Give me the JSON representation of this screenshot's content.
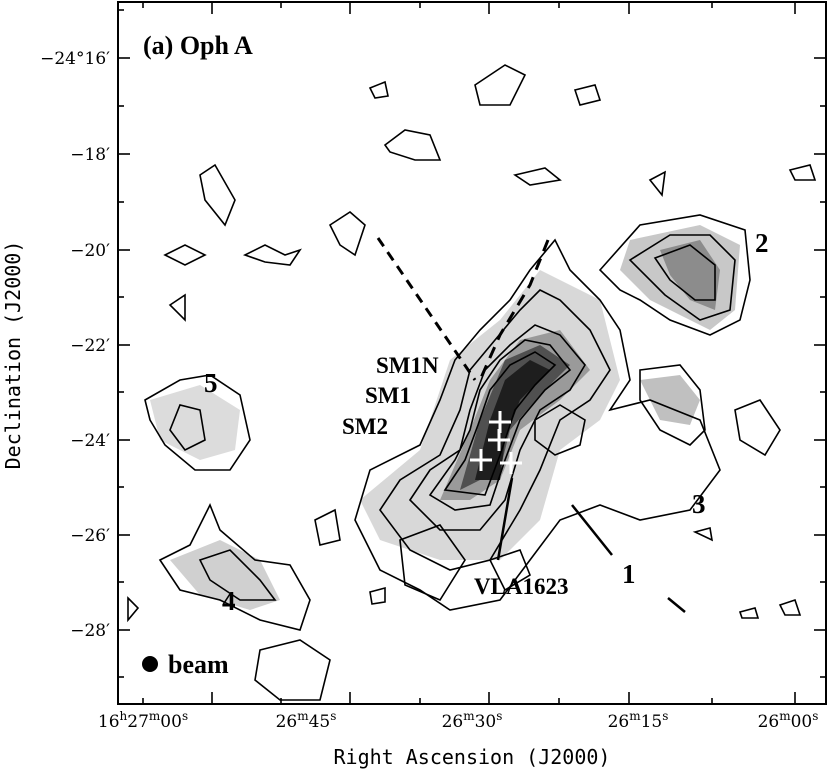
{
  "panel_title": "(a) Oph A",
  "axes": {
    "x_title": "Right Ascension (J2000)",
    "y_title": "Declination (J2000)",
    "x_ticks": [
      {
        "main": "16",
        "unit1": "h",
        "mid": "27",
        "unit2": "m",
        "sec": "00",
        "unit3": "s"
      },
      {
        "main": "26",
        "unit1": "m",
        "mid": "45",
        "unit2": "s"
      },
      {
        "main": "26",
        "unit1": "m",
        "mid": "30",
        "unit2": "s"
      },
      {
        "main": "26",
        "unit1": "m",
        "mid": "15",
        "unit2": "s"
      },
      {
        "main": "26",
        "unit1": "m",
        "mid": "00",
        "unit2": "s"
      }
    ],
    "y_ticks": [
      "−24°16′",
      "−18′",
      "−20′",
      "−22′",
      "−24′",
      "−26′",
      "−28′"
    ]
  },
  "labels": {
    "sm1n": "SM1N",
    "sm1": "SM1",
    "sm2": "SM2",
    "vla": "VLA1623",
    "region1": "1",
    "region2": "2",
    "region3": "3",
    "region4": "4",
    "region5": "5",
    "beam": "beam"
  }
}
